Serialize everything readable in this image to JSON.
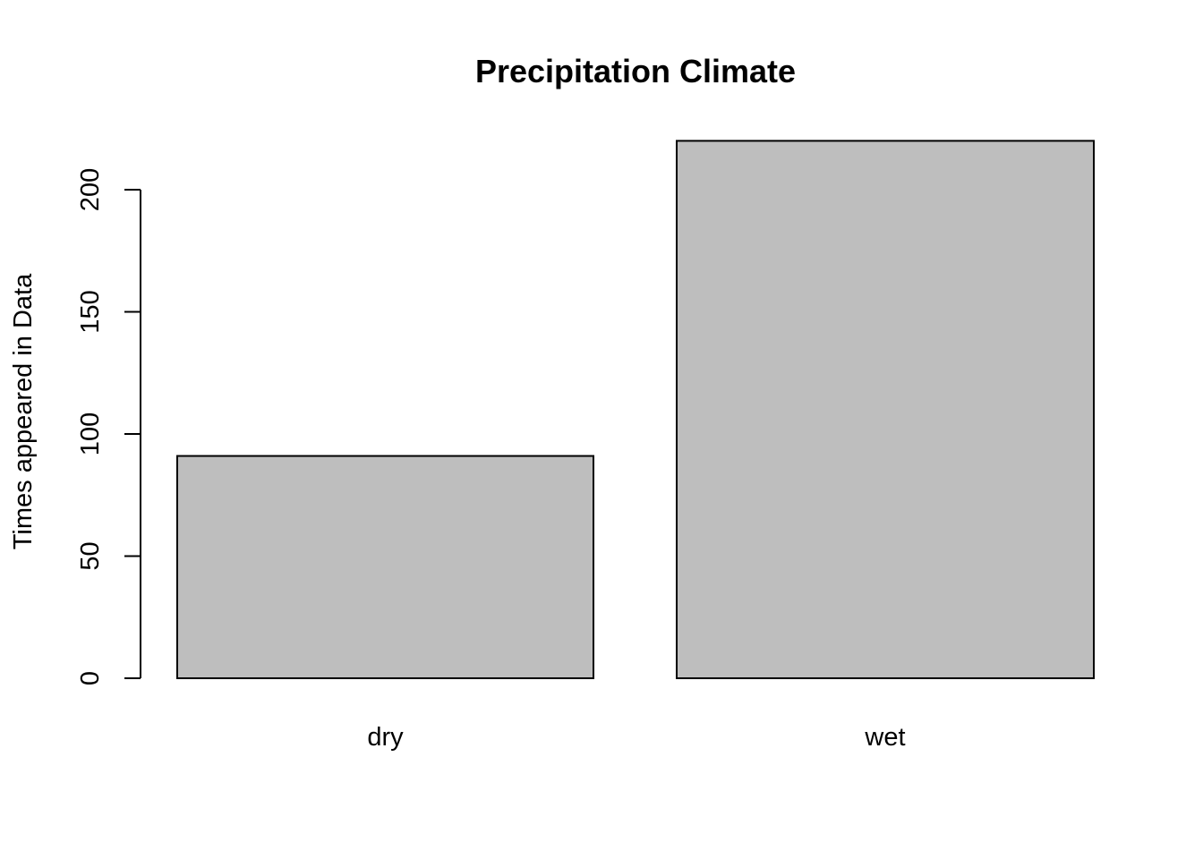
{
  "chart_data": {
    "type": "bar",
    "title": "Precipitation Climate",
    "xlabel": "",
    "ylabel": "Times appeared in Data",
    "categories": [
      "dry",
      "wet"
    ],
    "values": [
      91,
      220
    ],
    "ylim": [
      0,
      220
    ],
    "yticks": [
      0,
      50,
      100,
      150,
      200
    ],
    "ytick_labels": [
      "0",
      "50",
      "100",
      "150",
      "200"
    ],
    "bar_color": "#bebebe",
    "grid": false,
    "legend": "none"
  }
}
